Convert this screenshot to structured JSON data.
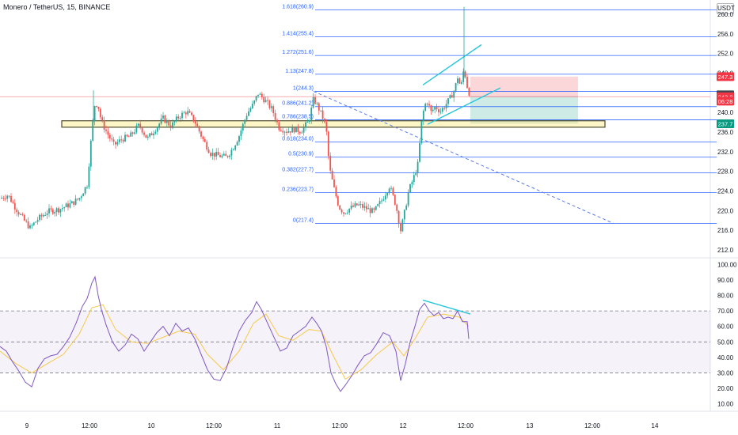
{
  "header": {
    "title": "Monero / TetherUS, 15, BINANCE",
    "currency": "USDT"
  },
  "chart_data": [
    {
      "type": "candlestick",
      "title": "Monero / TetherUS, 15, BINANCE",
      "x_ticks": [
        "9",
        "12:00",
        "10",
        "12:00",
        "11",
        "12:00",
        "12",
        "12:00",
        "13",
        "12:00",
        "14"
      ],
      "y_ticks": [
        "260.0",
        "256.0",
        "252.0",
        "248.0",
        "244.0",
        "240.0",
        "236.0",
        "232.0",
        "228.0",
        "224.0",
        "220.0",
        "216.0",
        "212.0"
      ],
      "ylim": [
        210.4,
        262.9
      ],
      "price_path": [
        [
          0,
          222.5
        ],
        [
          10,
          223.2
        ],
        [
          20,
          220.5
        ],
        [
          30,
          218.1
        ],
        [
          38,
          216.5
        ],
        [
          48,
          218.3
        ],
        [
          60,
          219.8
        ],
        [
          75,
          220.3
        ],
        [
          90,
          221.4
        ],
        [
          100,
          222.5
        ],
        [
          110,
          225.3
        ],
        [
          116,
          236.1
        ],
        [
          120,
          242.1
        ],
        [
          124,
          241.3
        ],
        [
          128,
          238.2
        ],
        [
          134,
          236.2
        ],
        [
          144,
          233.3
        ],
        [
          154,
          234.6
        ],
        [
          164,
          235.1
        ],
        [
          176,
          237.5
        ],
        [
          186,
          234.6
        ],
        [
          196,
          236.6
        ],
        [
          206,
          238.8
        ],
        [
          216,
          237.2
        ],
        [
          226,
          239.2
        ],
        [
          236,
          240.2
        ],
        [
          246,
          238.2
        ],
        [
          256,
          234.6
        ],
        [
          266,
          231.7
        ],
        [
          276,
          231.2
        ],
        [
          286,
          230.9
        ],
        [
          294,
          232.7
        ],
        [
          302,
          235.3
        ],
        [
          312,
          239.8
        ],
        [
          320,
          241.7
        ],
        [
          326,
          243.9
        ],
        [
          334,
          242.6
        ],
        [
          344,
          240.5
        ],
        [
          352,
          237.0
        ],
        [
          362,
          236.2
        ],
        [
          372,
          236.6
        ],
        [
          380,
          236.2
        ],
        [
          390,
          238.2
        ],
        [
          396,
          242.8
        ],
        [
          402,
          241.0
        ],
        [
          408,
          238.8
        ],
        [
          412,
          236.6
        ],
        [
          416,
          228.7
        ],
        [
          422,
          224.4
        ],
        [
          428,
          220.8
        ],
        [
          434,
          219.6
        ],
        [
          442,
          220.5
        ],
        [
          452,
          221.2
        ],
        [
          462,
          220.5
        ],
        [
          472,
          219.7
        ],
        [
          482,
          222.1
        ],
        [
          492,
          225.1
        ],
        [
          500,
          221.1
        ],
        [
          506,
          216.0
        ],
        [
          510,
          218.9
        ],
        [
          516,
          224.0
        ],
        [
          522,
          226.5
        ],
        [
          528,
          229.6
        ],
        [
          532,
          237.5
        ],
        [
          536,
          241.4
        ],
        [
          540,
          242.3
        ],
        [
          544,
          240.0
        ],
        [
          550,
          241.2
        ],
        [
          556,
          240.2
        ],
        [
          562,
          241.4
        ],
        [
          568,
          242.8
        ],
        [
          574,
          244.6
        ],
        [
          578,
          247.2
        ],
        [
          582,
          245.0
        ],
        [
          586,
          249.1
        ],
        [
          590,
          245.3
        ],
        [
          594,
          243.2
        ]
      ],
      "fib_levels": [
        {
          "label": "1.618(260.9)",
          "value": 260.9
        },
        {
          "label": "1.414(255.4)",
          "value": 255.4
        },
        {
          "label": "1.272(251.6)",
          "value": 251.6
        },
        {
          "label": "1.13(247.8)",
          "value": 247.8
        },
        {
          "label": "1(244.3)",
          "value": 244.3
        },
        {
          "label": "0.886(241.2)",
          "value": 241.2
        },
        {
          "label": "0.786(238.5)",
          "value": 238.5
        },
        {
          "label": "0.618(234.0)",
          "value": 234.0
        },
        {
          "label": "0.5(230.9)",
          "value": 230.9
        },
        {
          "label": "0.382(227.7)",
          "value": 227.7
        },
        {
          "label": "0.236(223.7)",
          "value": 223.7
        },
        {
          "label": "0(217.4)",
          "value": 217.4
        }
      ],
      "support_zone": [
        237.4,
        237.9
      ],
      "position": {
        "entry": 243.2,
        "stop": 247.3,
        "target": 237.7
      },
      "price_badges": [
        {
          "text": "247.3",
          "value": 247.3,
          "color": "#f23645"
        },
        {
          "text": "243.6",
          "value": 243.6,
          "color": "#434651"
        },
        {
          "text": "243.2",
          "value": 243.2,
          "color": "#f23645"
        },
        {
          "text": "06:28",
          "value": 242.3,
          "color": "#f23645"
        },
        {
          "text": "237.7",
          "value": 237.7,
          "color": "#089981"
        }
      ],
      "trendlines": [
        {
          "from": [
            396,
            244.3
          ],
          "to": [
            775,
            217.4
          ],
          "style": "dashed"
        },
        {
          "from": [
            534,
            245.6
          ],
          "to": [
            608,
            253.8
          ],
          "style": "solid"
        },
        {
          "from": [
            540,
            237.6
          ],
          "to": [
            632,
            245.0
          ],
          "style": "solid"
        }
      ]
    },
    {
      "type": "line",
      "title": "",
      "y_ticks": [
        "100.00",
        "90.00",
        "80.00",
        "70.00",
        "60.00",
        "50.00",
        "40.00",
        "30.00",
        "20.00",
        "10.00"
      ],
      "ylim": [
        5.2,
        104.3
      ],
      "bands": {
        "upper": 70,
        "middle": 50,
        "lower": 30
      },
      "rsi": [
        [
          0,
          47
        ],
        [
          8,
          44
        ],
        [
          16,
          37
        ],
        [
          24,
          31
        ],
        [
          32,
          24
        ],
        [
          40,
          21
        ],
        [
          48,
          33
        ],
        [
          56,
          39
        ],
        [
          64,
          41
        ],
        [
          72,
          42
        ],
        [
          80,
          47
        ],
        [
          88,
          53
        ],
        [
          96,
          62
        ],
        [
          104,
          73
        ],
        [
          110,
          78
        ],
        [
          116,
          88
        ],
        [
          120,
          92
        ],
        [
          124,
          80
        ],
        [
          128,
          71
        ],
        [
          134,
          61
        ],
        [
          142,
          50
        ],
        [
          150,
          44
        ],
        [
          158,
          48
        ],
        [
          166,
          55
        ],
        [
          174,
          52
        ],
        [
          182,
          44
        ],
        [
          190,
          50
        ],
        [
          198,
          56
        ],
        [
          206,
          60
        ],
        [
          214,
          54
        ],
        [
          222,
          62
        ],
        [
          230,
          57
        ],
        [
          238,
          59
        ],
        [
          246,
          52
        ],
        [
          254,
          42
        ],
        [
          262,
          32
        ],
        [
          270,
          26
        ],
        [
          278,
          25
        ],
        [
          286,
          33
        ],
        [
          294,
          46
        ],
        [
          302,
          57
        ],
        [
          310,
          64
        ],
        [
          318,
          69
        ],
        [
          324,
          76
        ],
        [
          330,
          71
        ],
        [
          338,
          62
        ],
        [
          346,
          53
        ],
        [
          354,
          44
        ],
        [
          362,
          46
        ],
        [
          370,
          54
        ],
        [
          378,
          57
        ],
        [
          386,
          60
        ],
        [
          394,
          66
        ],
        [
          400,
          62
        ],
        [
          406,
          57
        ],
        [
          412,
          47
        ],
        [
          418,
          30
        ],
        [
          424,
          23
        ],
        [
          430,
          18
        ],
        [
          436,
          22
        ],
        [
          444,
          28
        ],
        [
          452,
          35
        ],
        [
          460,
          41
        ],
        [
          468,
          43
        ],
        [
          476,
          49
        ],
        [
          484,
          56
        ],
        [
          492,
          54
        ],
        [
          500,
          44
        ],
        [
          506,
          25
        ],
        [
          512,
          36
        ],
        [
          518,
          50
        ],
        [
          524,
          60
        ],
        [
          530,
          71
        ],
        [
          536,
          75
        ],
        [
          542,
          70
        ],
        [
          548,
          67
        ],
        [
          554,
          69
        ],
        [
          560,
          65
        ],
        [
          566,
          66
        ],
        [
          572,
          65
        ],
        [
          578,
          70
        ],
        [
          584,
          63
        ],
        [
          590,
          63
        ],
        [
          592,
          52
        ]
      ],
      "rsi_ma": [
        [
          0,
          44
        ],
        [
          20,
          36
        ],
        [
          40,
          30
        ],
        [
          60,
          36
        ],
        [
          80,
          42
        ],
        [
          100,
          55
        ],
        [
          116,
          72
        ],
        [
          130,
          74
        ],
        [
          146,
          58
        ],
        [
          166,
          50
        ],
        [
          186,
          49
        ],
        [
          206,
          53
        ],
        [
          226,
          57
        ],
        [
          246,
          55
        ],
        [
          262,
          42
        ],
        [
          282,
          32
        ],
        [
          302,
          44
        ],
        [
          320,
          62
        ],
        [
          336,
          68
        ],
        [
          352,
          54
        ],
        [
          370,
          51
        ],
        [
          390,
          58
        ],
        [
          406,
          57
        ],
        [
          420,
          42
        ],
        [
          436,
          26
        ],
        [
          456,
          32
        ],
        [
          476,
          42
        ],
        [
          496,
          50
        ],
        [
          510,
          41
        ],
        [
          524,
          52
        ],
        [
          540,
          66
        ],
        [
          560,
          68
        ],
        [
          580,
          66
        ],
        [
          592,
          60
        ]
      ],
      "divergence_line": {
        "from": [
          534,
          77
        ],
        "to": [
          594,
          68
        ]
      },
      "note": "RSI pane"
    }
  ]
}
